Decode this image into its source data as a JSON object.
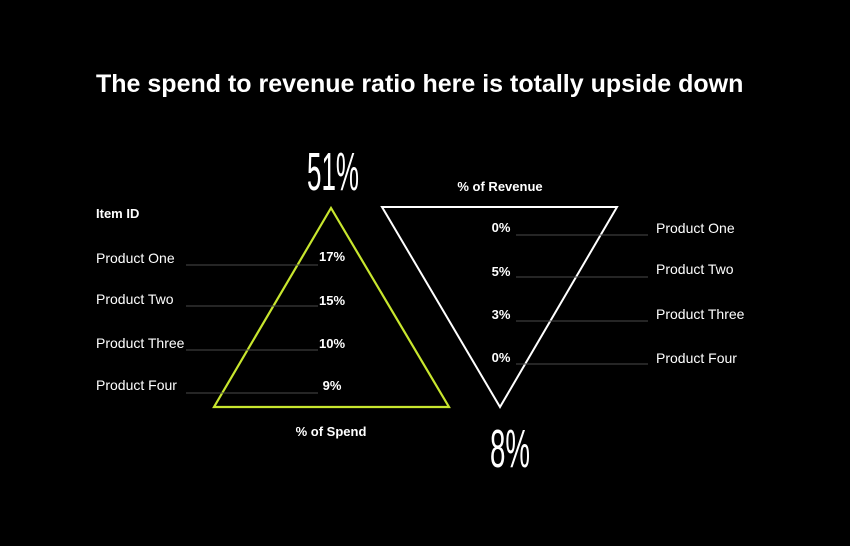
{
  "title": "The spend to revenue ratio here is totally upside down",
  "colors": {
    "spend": "#c8e62e",
    "revenue": "#ffffff",
    "rule": "#4a4a4a"
  },
  "chart_data": {
    "type": "table",
    "category_header": "Item ID",
    "categories": [
      "Product One",
      "Product Two",
      "Product Three",
      "Product Four"
    ],
    "series": [
      {
        "name": "% of Spend",
        "values": [
          17,
          15,
          10,
          9
        ],
        "value_labels": [
          "17%",
          "15%",
          "10%",
          "9%"
        ],
        "total_label": "51%"
      },
      {
        "name": "% of Revenue",
        "values": [
          0,
          5,
          3,
          0
        ],
        "value_labels": [
          "0%",
          "5%",
          "3%",
          "0%"
        ],
        "total_label": "8%"
      }
    ]
  }
}
